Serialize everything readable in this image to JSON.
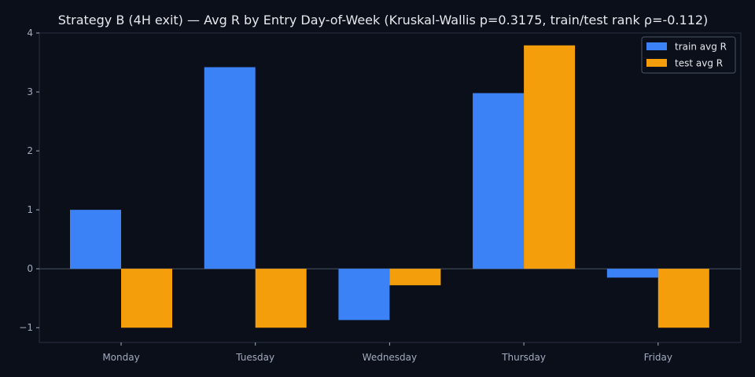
{
  "chart_data": {
    "type": "bar",
    "title": "Strategy B (4H exit) — Avg R by Entry Day-of-Week (Kruskal-Wallis p=0.3175, train/test rank ρ=-0.112)",
    "xlabel": "",
    "ylabel": "",
    "categories": [
      "Monday",
      "Tuesday",
      "Wednesday",
      "Thursday",
      "Friday"
    ],
    "series": [
      {
        "name": "train avg R",
        "color": "#3b82f6",
        "values": [
          1.0,
          3.42,
          -0.87,
          2.98,
          -0.15
        ]
      },
      {
        "name": "test avg R",
        "color": "#f59e0b",
        "values": [
          -1.0,
          -1.0,
          -0.28,
          3.79,
          -1.0
        ]
      }
    ],
    "ylim": [
      -1.25,
      4.0
    ],
    "yticks": [
      -1,
      0,
      1,
      2,
      3,
      4
    ],
    "legend": "top-right",
    "grid": false,
    "background": "#0b0f19",
    "axis_color": "#2a3142",
    "zero_line_color": "#4b5566"
  }
}
